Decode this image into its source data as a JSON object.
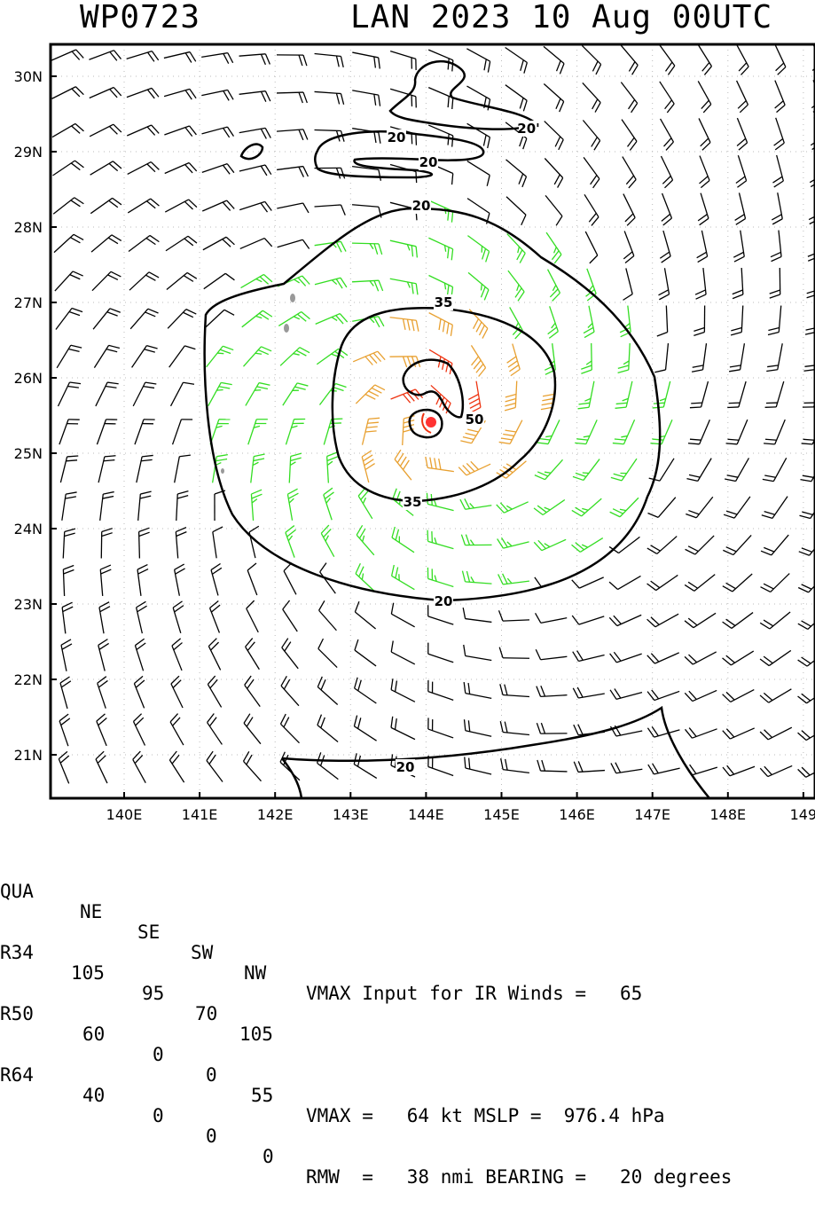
{
  "header": {
    "storm_id": "WP0723",
    "storm_time": "LAN 2023 10 Aug 00UTC"
  },
  "map": {
    "lon_labels": [
      "140E",
      "141E",
      "142E",
      "143E",
      "144E",
      "145E",
      "146E",
      "147E",
      "148E",
      "149"
    ],
    "lat_labels": [
      "30N",
      "29N",
      "28N",
      "27N",
      "26N",
      "25N",
      "24N",
      "23N",
      "22N",
      "21N"
    ],
    "storm_center": {
      "lon": 144.05,
      "lat": 25.4
    },
    "contours": [
      {
        "label": "20",
        "color": "#000000"
      },
      {
        "label": "35",
        "color": "#000000"
      },
      {
        "label": "50",
        "color": "#000000"
      }
    ],
    "wind_colors": {
      "below_34": "#000000",
      "r34": "#33dd22",
      "r50": "#e8a030",
      "r64": "#ee3311",
      "center": "#ff3333"
    }
  },
  "table": {
    "headers": [
      "QUA",
      "NE",
      "SE",
      "SW",
      "NW"
    ],
    "rows": [
      {
        "label": "R34",
        "values": [
          "105",
          "95",
          "70",
          "105"
        ]
      },
      {
        "label": "R50",
        "values": [
          "60",
          "0",
          "0",
          "55"
        ]
      },
      {
        "label": "R64",
        "values": [
          "40",
          "0",
          "0",
          "0"
        ]
      }
    ]
  },
  "summary": {
    "vmax_input": "VMAX Input for IR Winds =   65",
    "vmax_mslp": "VMAX =   64 kt MSLP =  976.4 hPa",
    "rmw_bearing": "RMW  =   38 nmi BEARING =   20 degrees"
  }
}
